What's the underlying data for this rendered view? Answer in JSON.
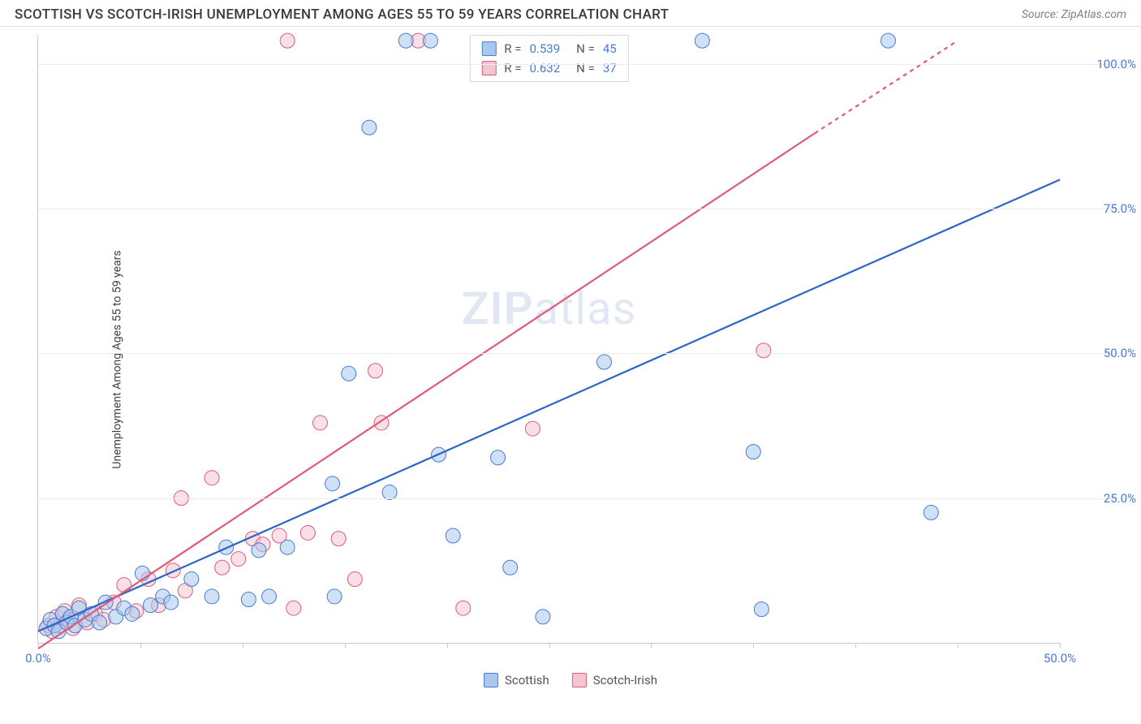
{
  "header": {
    "title": "SCOTTISH VS SCOTCH-IRISH UNEMPLOYMENT AMONG AGES 55 TO 59 YEARS CORRELATION CHART",
    "source": "Source: ZipAtlas.com"
  },
  "chart": {
    "type": "scatter",
    "ylabel": "Unemployment Among Ages 55 to 59 years",
    "watermark": "ZIPatlas",
    "background_color": "#ffffff",
    "grid_color": "#ececec",
    "axis_color": "#c8c8c8",
    "tick_label_color": "#4a7bd0",
    "xlim": [
      0,
      50
    ],
    "ylim": [
      0,
      105
    ],
    "xticks": [
      0,
      5,
      10,
      15,
      20,
      25,
      30,
      35,
      40,
      45,
      50
    ],
    "xtick_labels": {
      "0": "0.0%",
      "50": "50.0%"
    },
    "yticks": [
      25,
      50,
      75,
      100
    ],
    "ytick_labels": {
      "25": "25.0%",
      "50": "50.0%",
      "75": "75.0%",
      "100": "100.0%"
    },
    "marker_radius": 9,
    "marker_opacity": 0.55,
    "line_width": 2.2,
    "series": [
      {
        "name": "Scottish",
        "color_fill": "#a8c8ef",
        "color_stroke": "#4a7bd0",
        "line_color": "#2e66c9",
        "R": "0.539",
        "N": "45",
        "trend": {
          "x1": 0,
          "y1": 2,
          "x2": 50,
          "y2": 80
        },
        "points": [
          [
            0.4,
            2.5
          ],
          [
            0.6,
            4
          ],
          [
            0.8,
            3
          ],
          [
            1.0,
            2
          ],
          [
            1.2,
            5
          ],
          [
            1.4,
            3.5
          ],
          [
            1.6,
            4.5
          ],
          [
            1.8,
            3
          ],
          [
            2.0,
            6
          ],
          [
            2.3,
            4
          ],
          [
            2.6,
            5
          ],
          [
            3.0,
            3.5
          ],
          [
            3.3,
            7
          ],
          [
            3.8,
            4.5
          ],
          [
            4.2,
            6
          ],
          [
            4.6,
            5
          ],
          [
            5.1,
            12
          ],
          [
            5.5,
            6.5
          ],
          [
            6.1,
            8
          ],
          [
            6.5,
            7
          ],
          [
            7.5,
            11
          ],
          [
            8.5,
            8
          ],
          [
            9.2,
            16.5
          ],
          [
            10.3,
            7.5
          ],
          [
            10.8,
            16
          ],
          [
            11.3,
            8
          ],
          [
            12.2,
            16.5
          ],
          [
            14.5,
            8
          ],
          [
            14.4,
            27.5
          ],
          [
            15.2,
            46.5
          ],
          [
            16.2,
            89
          ],
          [
            17.2,
            26
          ],
          [
            18.0,
            104
          ],
          [
            19.2,
            104
          ],
          [
            19.6,
            32.5
          ],
          [
            20.3,
            18.5
          ],
          [
            23.1,
            13
          ],
          [
            22.5,
            32
          ],
          [
            24.7,
            4.5
          ],
          [
            27.7,
            48.5
          ],
          [
            32.5,
            104
          ],
          [
            35.0,
            33
          ],
          [
            35.4,
            5.8
          ],
          [
            41.6,
            104
          ],
          [
            43.7,
            22.5
          ]
        ]
      },
      {
        "name": "Scotch-Irish",
        "color_fill": "#f3c6d1",
        "color_stroke": "#e05a7a",
        "line_color": "#e05a7a",
        "R": "0.632",
        "N": "37",
        "trend": {
          "x1": 0,
          "y1": -1,
          "x2": 38,
          "y2": 88
        },
        "trend_dash": {
          "x1": 38,
          "y1": 88,
          "x2": 45,
          "y2": 104
        },
        "points": [
          [
            0.5,
            3
          ],
          [
            0.7,
            2
          ],
          [
            0.9,
            4.5
          ],
          [
            1.1,
            3
          ],
          [
            1.3,
            5.5
          ],
          [
            1.5,
            4
          ],
          [
            1.7,
            2.5
          ],
          [
            2.0,
            6.5
          ],
          [
            2.4,
            3.5
          ],
          [
            2.8,
            5
          ],
          [
            3.2,
            4
          ],
          [
            3.7,
            7
          ],
          [
            4.2,
            10
          ],
          [
            4.8,
            5.5
          ],
          [
            5.4,
            11
          ],
          [
            5.9,
            6.5
          ],
          [
            6.6,
            12.5
          ],
          [
            7.2,
            9
          ],
          [
            7.0,
            25
          ],
          [
            8.5,
            28.5
          ],
          [
            9.0,
            13
          ],
          [
            9.8,
            14.5
          ],
          [
            10.5,
            18
          ],
          [
            11.0,
            17
          ],
          [
            11.8,
            18.5
          ],
          [
            12.2,
            104
          ],
          [
            12.5,
            6
          ],
          [
            13.2,
            19
          ],
          [
            13.8,
            38
          ],
          [
            14.7,
            18
          ],
          [
            15.5,
            11
          ],
          [
            16.8,
            38
          ],
          [
            16.5,
            47
          ],
          [
            18.6,
            104
          ],
          [
            20.8,
            6
          ],
          [
            24.2,
            37
          ],
          [
            35.5,
            50.5
          ]
        ]
      }
    ],
    "legend": {
      "items": [
        {
          "label": "Scottish",
          "fill": "#a8c8ef",
          "stroke": "#4a7bd0"
        },
        {
          "label": "Scotch-Irish",
          "fill": "#f3c6d1",
          "stroke": "#e05a7a"
        }
      ]
    }
  }
}
